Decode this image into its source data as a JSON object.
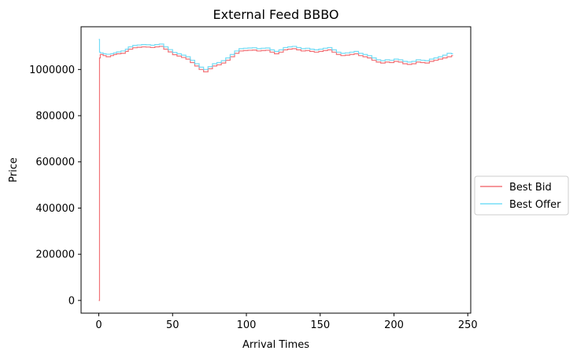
{
  "chart_data": {
    "type": "line",
    "title": "External Feed BBBO",
    "xlabel": "Arrival Times",
    "ylabel": "Price",
    "xlim": [
      -12,
      252
    ],
    "ylim": [
      -55000,
      1185000
    ],
    "xticks": [
      0,
      50,
      100,
      150,
      200,
      250
    ],
    "yticks": [
      0,
      200000,
      400000,
      600000,
      800000,
      1000000
    ],
    "xtick_labels": [
      "0",
      "50",
      "100",
      "150",
      "200",
      "250"
    ],
    "ytick_labels": [
      "0",
      "200000",
      "400000",
      "600000",
      "800000",
      "1000000"
    ],
    "legend_position": "outside-right",
    "grid": false,
    "step": true,
    "series": [
      {
        "name": "Best Bid",
        "color": "#f0595f",
        "x": [
          0,
          0.5,
          1,
          3,
          5,
          8,
          10,
          12,
          15,
          18,
          20,
          23,
          26,
          29,
          32,
          35,
          38,
          41,
          44,
          47,
          50,
          53,
          56,
          59,
          62,
          65,
          68,
          71,
          74,
          77,
          80,
          83,
          86,
          89,
          92,
          95,
          98,
          101,
          104,
          107,
          110,
          113,
          116,
          119,
          122,
          125,
          128,
          131,
          134,
          137,
          140,
          143,
          146,
          149,
          152,
          155,
          158,
          161,
          164,
          167,
          170,
          173,
          176,
          179,
          182,
          185,
          188,
          191,
          194,
          197,
          200,
          203,
          206,
          209,
          212,
          215,
          218,
          221,
          224,
          227,
          230,
          233,
          236,
          239
        ],
        "values": [
          0,
          1050000,
          1065000,
          1060000,
          1055000,
          1060000,
          1065000,
          1068000,
          1070000,
          1078000,
          1088000,
          1094000,
          1096000,
          1098000,
          1097000,
          1095000,
          1098000,
          1100000,
          1088000,
          1076000,
          1064000,
          1058000,
          1052000,
          1045000,
          1030000,
          1015000,
          1000000,
          990000,
          1003000,
          1015000,
          1020000,
          1028000,
          1040000,
          1055000,
          1070000,
          1080000,
          1082000,
          1083000,
          1084000,
          1080000,
          1082000,
          1083000,
          1075000,
          1068000,
          1075000,
          1085000,
          1088000,
          1090000,
          1085000,
          1080000,
          1082000,
          1078000,
          1075000,
          1078000,
          1082000,
          1085000,
          1075000,
          1065000,
          1060000,
          1062000,
          1065000,
          1068000,
          1060000,
          1055000,
          1050000,
          1040000,
          1032000,
          1028000,
          1032000,
          1030000,
          1035000,
          1032000,
          1025000,
          1022000,
          1025000,
          1032000,
          1030000,
          1028000,
          1035000,
          1040000,
          1045000,
          1050000,
          1055000,
          1060000
        ]
      },
      {
        "name": "Best Offer",
        "color": "#5ad6f5",
        "x": [
          0,
          0.5,
          1,
          3,
          5,
          8,
          10,
          12,
          15,
          18,
          20,
          23,
          26,
          29,
          32,
          35,
          38,
          41,
          44,
          47,
          50,
          53,
          56,
          59,
          62,
          65,
          68,
          71,
          74,
          77,
          80,
          83,
          86,
          89,
          92,
          95,
          98,
          101,
          104,
          107,
          110,
          113,
          116,
          119,
          122,
          125,
          128,
          131,
          134,
          137,
          140,
          143,
          146,
          149,
          152,
          155,
          158,
          161,
          164,
          167,
          170,
          173,
          176,
          179,
          182,
          185,
          188,
          191,
          194,
          197,
          200,
          203,
          206,
          209,
          212,
          215,
          218,
          221,
          224,
          227,
          230,
          233,
          236,
          239
        ],
        "values": [
          1130000,
          1075000,
          1072000,
          1068000,
          1066000,
          1068000,
          1072000,
          1076000,
          1080000,
          1088000,
          1098000,
          1104000,
          1106000,
          1108000,
          1107000,
          1105000,
          1108000,
          1110000,
          1098000,
          1086000,
          1074000,
          1068000,
          1062000,
          1055000,
          1040000,
          1025000,
          1010000,
          1000000,
          1012000,
          1025000,
          1030000,
          1038000,
          1050000,
          1065000,
          1080000,
          1090000,
          1092000,
          1093000,
          1094000,
          1090000,
          1092000,
          1093000,
          1085000,
          1078000,
          1085000,
          1095000,
          1098000,
          1100000,
          1095000,
          1090000,
          1092000,
          1088000,
          1085000,
          1088000,
          1092000,
          1095000,
          1085000,
          1075000,
          1070000,
          1072000,
          1075000,
          1078000,
          1070000,
          1065000,
          1060000,
          1050000,
          1042000,
          1038000,
          1042000,
          1040000,
          1045000,
          1042000,
          1035000,
          1032000,
          1035000,
          1042000,
          1040000,
          1038000,
          1045000,
          1050000,
          1055000,
          1062000,
          1070000,
          1068000
        ]
      }
    ]
  }
}
